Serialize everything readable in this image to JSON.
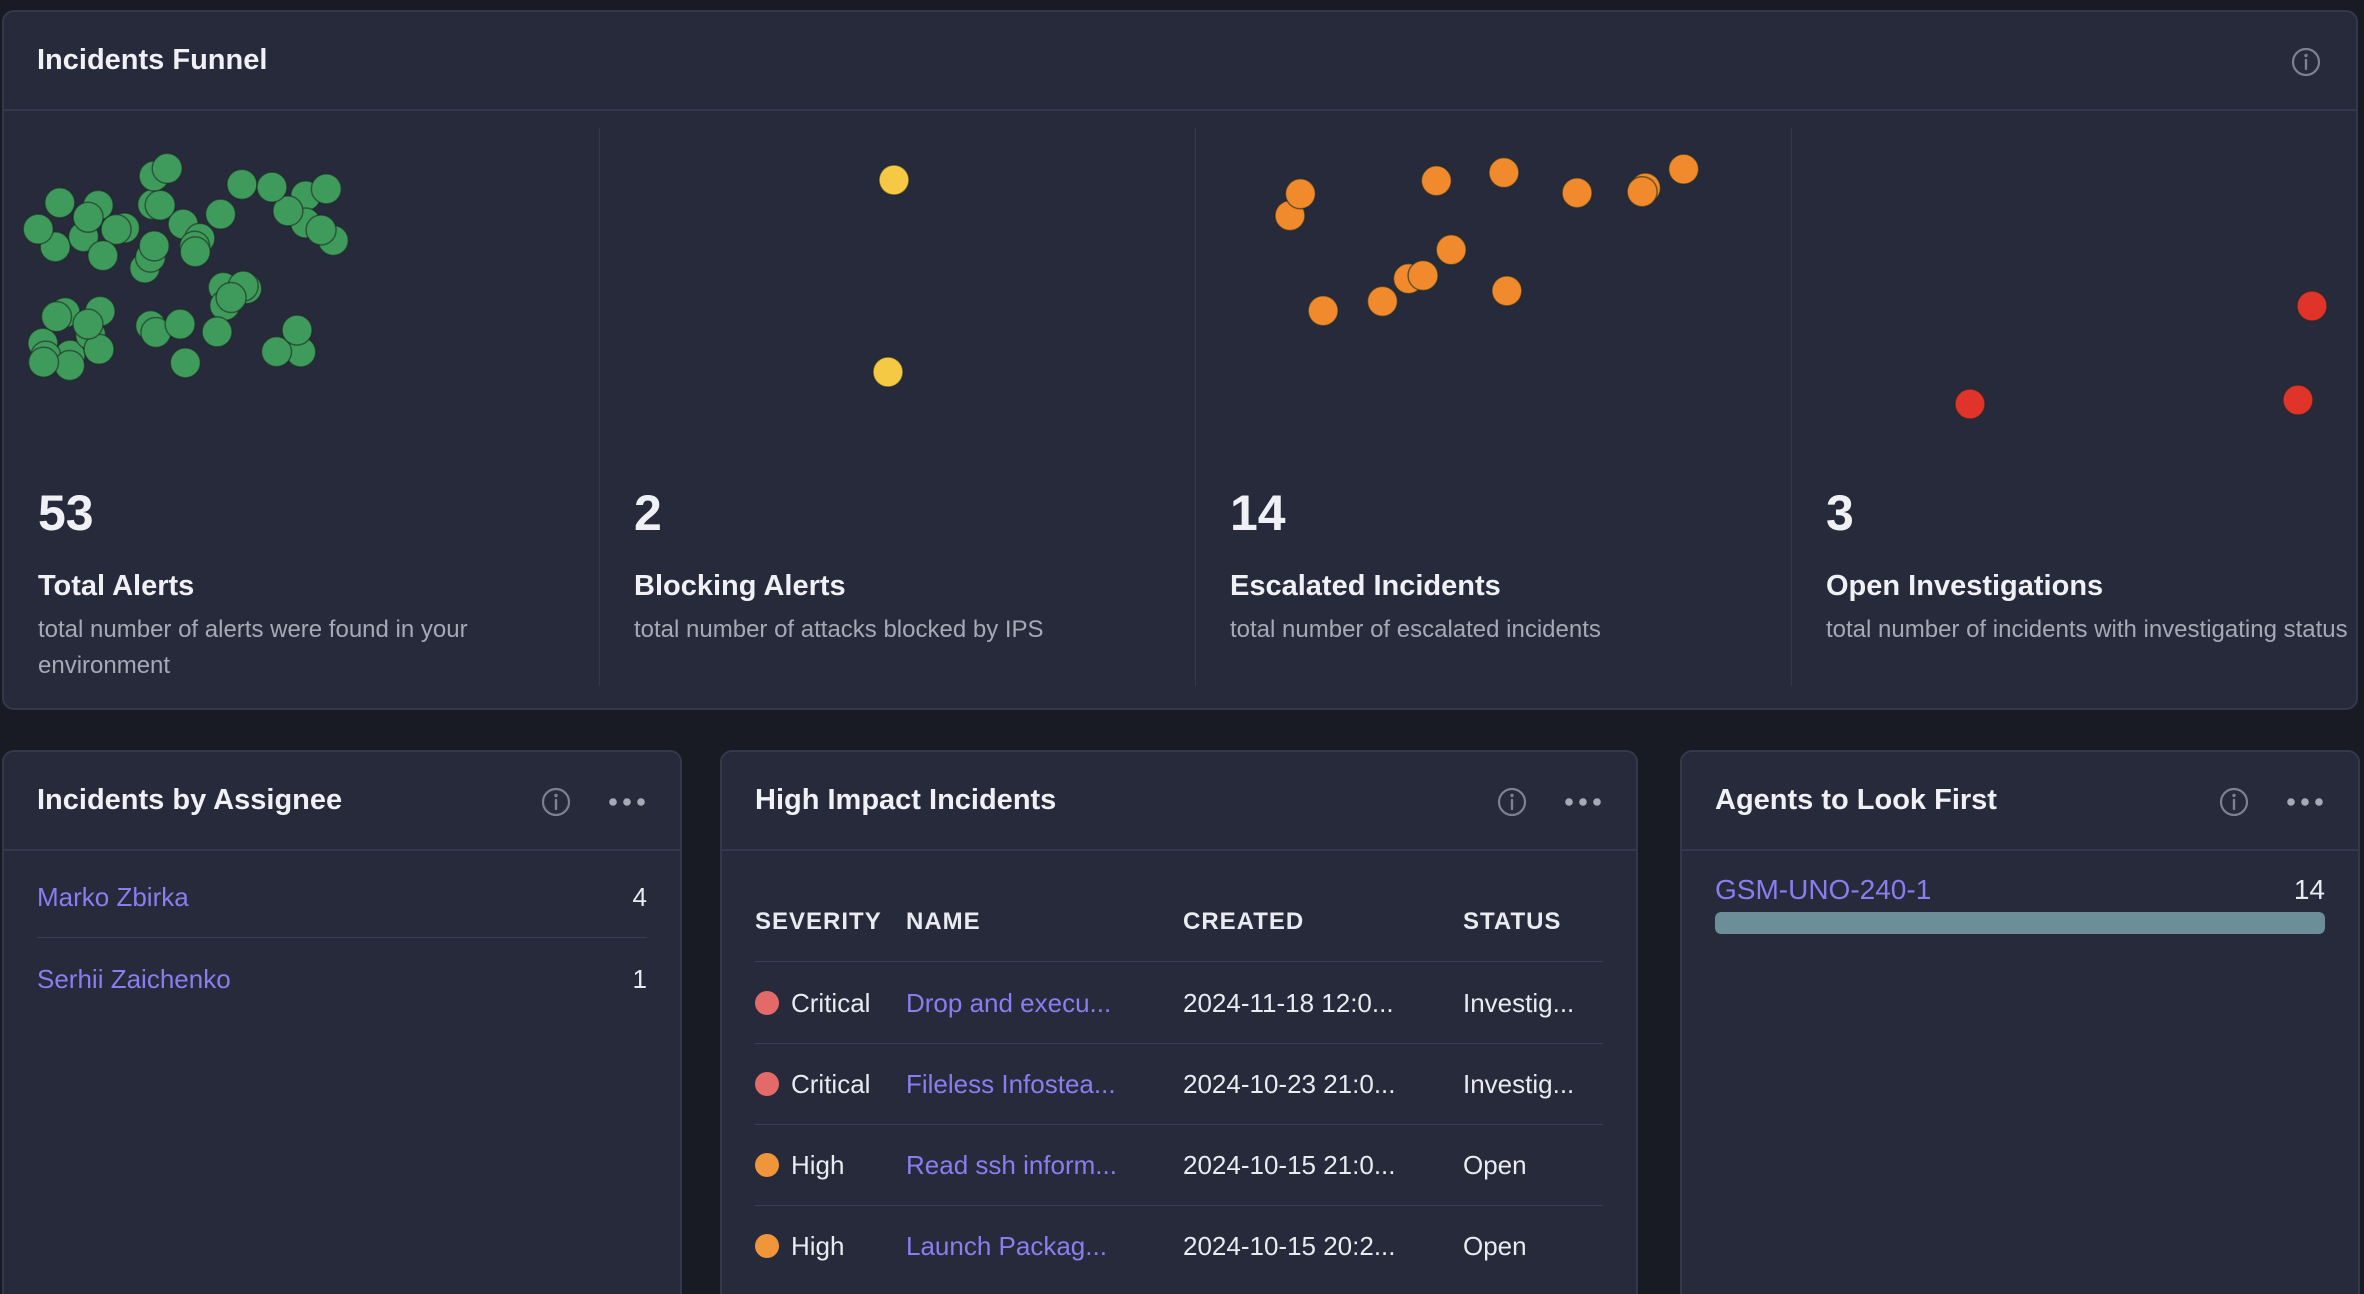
{
  "funnel": {
    "title": "Incidents Funnel",
    "columns": [
      {
        "value": "53",
        "label": "Total Alerts",
        "desc": "total number of alerts were found in your environment",
        "dot_color": "#3f9b5c",
        "dot_count": 53
      },
      {
        "value": "2",
        "label": "Blocking Alerts",
        "desc": "total number of attacks blocked by IPS",
        "dot_color": "#f5c944",
        "dot_count": 2
      },
      {
        "value": "14",
        "label": "Escalated Incidents",
        "desc": "total number of escalated incidents",
        "dot_color": "#f08a2c",
        "dot_count": 14
      },
      {
        "value": "3",
        "label": "Open Investigations",
        "desc": "total number of incidents with investigating status",
        "dot_color": "#e0342a",
        "dot_count": 3
      }
    ]
  },
  "assignee": {
    "title": "Incidents by Assignee",
    "rows": [
      {
        "name": "Marko Zbirka",
        "count": "4"
      },
      {
        "name": "Serhii Zaichenko",
        "count": "1"
      }
    ]
  },
  "high_impact": {
    "title": "High Impact Incidents",
    "columns": [
      "SEVERITY",
      "NAME",
      "CREATED",
      "STATUS"
    ],
    "rows": [
      {
        "severity": "Critical",
        "sev_color": "#e46a6a",
        "name": "Drop and execu...",
        "created": "2024-11-18 12:0...",
        "status": "Investig..."
      },
      {
        "severity": "Critical",
        "sev_color": "#e46a6a",
        "name": "Fileless Infostea...",
        "created": "2024-10-23 21:0...",
        "status": "Investig..."
      },
      {
        "severity": "High",
        "sev_color": "#f0963a",
        "name": "Read ssh inform...",
        "created": "2024-10-15 21:0...",
        "status": "Open"
      },
      {
        "severity": "High",
        "sev_color": "#f0963a",
        "name": "Launch Packag...",
        "created": "2024-10-15 20:2...",
        "status": "Open"
      }
    ]
  },
  "agents": {
    "title": "Agents to Look First",
    "rows": [
      {
        "name": "GSM-UNO-240-1",
        "count": "14",
        "fraction": 1.0
      }
    ]
  },
  "icons": {
    "info": "info-icon",
    "more": "more-dots-icon"
  }
}
